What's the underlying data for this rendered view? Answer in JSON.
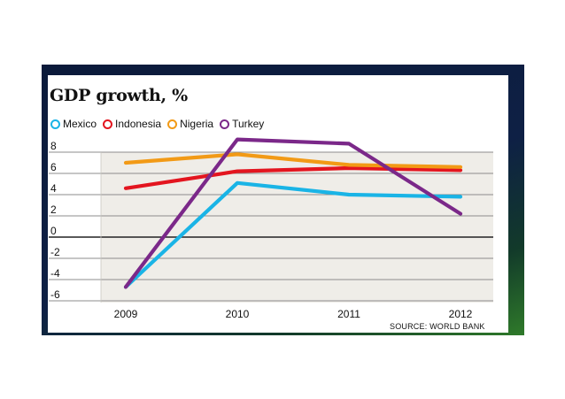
{
  "frame_colors": {
    "background": "#0e2045",
    "card": "#ffffff",
    "plot_bg": "#efede8"
  },
  "chart_data": {
    "type": "line",
    "title": "GDP growth, %",
    "source": "SOURCE: WORLD BANK",
    "x": [
      "2009",
      "2010",
      "2011",
      "2012"
    ],
    "ylim": [
      -6,
      8
    ],
    "yticks": [
      8,
      6,
      4,
      2,
      0,
      -2,
      -4,
      -6
    ],
    "grid": true,
    "series": [
      {
        "name": "Mexico",
        "color": "#1ab4e6",
        "values": [
          -4.7,
          5.1,
          4.0,
          3.8
        ]
      },
      {
        "name": "Indonesia",
        "color": "#e3151f",
        "values": [
          4.6,
          6.2,
          6.5,
          6.3
        ]
      },
      {
        "name": "Nigeria",
        "color": "#f29a16",
        "values": [
          7.0,
          7.8,
          6.8,
          6.6
        ]
      },
      {
        "name": "Turkey",
        "color": "#7b2889",
        "values": [
          -4.7,
          9.2,
          8.8,
          2.2
        ]
      }
    ]
  }
}
